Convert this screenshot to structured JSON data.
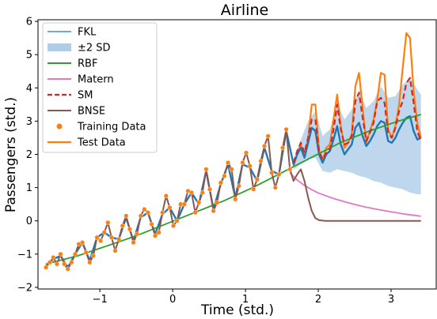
{
  "chart_data": {
    "type": "line",
    "title": "Airline",
    "xlabel": "Time (std.)",
    "ylabel": "Passengers (std.)",
    "xlim": [
      -1.85,
      3.62
    ],
    "ylim": [
      -2.05,
      6.05
    ],
    "xticks": [
      -1,
      0,
      1,
      2,
      3
    ],
    "yticks": [
      -2,
      -1,
      0,
      1,
      2,
      3,
      4,
      5,
      6
    ],
    "tick_labels_x": [
      "−1",
      "0",
      "1",
      "2",
      "3"
    ],
    "tick_labels_y": [
      "−2",
      "−1",
      "0",
      "1",
      "2",
      "3",
      "4",
      "5",
      "6"
    ],
    "grid": false,
    "legend_position": "top-left",
    "colors": {
      "fkl": "#1f77b4",
      "fkl_band": "#aecde8",
      "rbf": "#2ca02c",
      "matern": "#e377c2",
      "sm": "#d62728",
      "bnse": "#8c564b",
      "training": "#ff7f0e",
      "test": "#ff7f0e"
    },
    "legend": [
      "FKL",
      "±2 SD",
      "RBF",
      "Matern",
      "SM",
      "BNSE",
      "Training Data",
      "Test Data"
    ],
    "series": [
      {
        "name": "Training Data",
        "style": "scatter",
        "x": [
          -1.74,
          -1.69,
          -1.64,
          -1.59,
          -1.54,
          -1.49,
          -1.44,
          -1.39,
          -1.34,
          -1.29,
          -1.24,
          -1.19,
          -1.14,
          -1.09,
          -1.04,
          -0.99,
          -0.94,
          -0.89,
          -0.84,
          -0.79,
          -0.74,
          -0.69,
          -0.64,
          -0.59,
          -0.54,
          -0.49,
          -0.44,
          -0.39,
          -0.34,
          -0.29,
          -0.24,
          -0.19,
          -0.14,
          -0.09,
          -0.04,
          0.01,
          0.06,
          0.11,
          0.16,
          0.21,
          0.26,
          0.31,
          0.36,
          0.41,
          0.46,
          0.51,
          0.56,
          0.61,
          0.66,
          0.71,
          0.76,
          0.81,
          0.86,
          0.91,
          0.96,
          1.01,
          1.06,
          1.11,
          1.16,
          1.21,
          1.26,
          1.31,
          1.36,
          1.41,
          1.46,
          1.51,
          1.56,
          1.61
        ],
        "y": [
          -1.4,
          -1.25,
          -1.1,
          -1.3,
          -1.0,
          -1.3,
          -1.45,
          -1.25,
          -1.0,
          -0.7,
          -0.65,
          -0.95,
          -1.25,
          -1.05,
          -0.5,
          -0.6,
          -0.35,
          -0.05,
          -0.5,
          -0.9,
          -0.55,
          -0.15,
          0.15,
          -0.25,
          -0.65,
          -0.4,
          0.15,
          0.35,
          0.25,
          -0.1,
          -0.45,
          -0.35,
          0.25,
          0.75,
          0.4,
          -0.15,
          0.0,
          0.5,
          0.5,
          0.9,
          0.85,
          0.25,
          0.55,
          0.85,
          1.55,
          0.95,
          0.3,
          0.55,
          1.15,
          1.35,
          1.75,
          1.55,
          0.65,
          1.05,
          1.75,
          2.05,
          1.65,
          0.95,
          1.25,
          1.8,
          2.25,
          2.55,
          1.45,
          1.0,
          1.4,
          2.2,
          2.75,
          1.55
        ]
      },
      {
        "name": "Test Data",
        "style": "line",
        "x": [
          1.66,
          1.71,
          1.76,
          1.81,
          1.86,
          1.91,
          1.96,
          2.01,
          2.06,
          2.11,
          2.16,
          2.21,
          2.26,
          2.31,
          2.36,
          2.41,
          2.46,
          2.51,
          2.56,
          2.61,
          2.66,
          2.71,
          2.76,
          2.81,
          2.86,
          2.91,
          2.96,
          3.01,
          3.06,
          3.11,
          3.16,
          3.21,
          3.26,
          3.31,
          3.36,
          3.41
        ],
        "y": [
          1.65,
          2.0,
          2.3,
          1.95,
          2.5,
          3.5,
          3.5,
          2.15,
          1.8,
          2.2,
          2.3,
          3.05,
          3.8,
          2.85,
          2.2,
          2.35,
          2.6,
          4.05,
          4.45,
          3.4,
          2.35,
          2.7,
          3.05,
          3.65,
          4.45,
          4.4,
          2.75,
          2.5,
          2.85,
          3.5,
          4.6,
          5.65,
          5.5,
          3.9,
          2.95,
          2.5
        ]
      },
      {
        "name": "FKL",
        "style": "line",
        "x": [
          -1.74,
          -1.64,
          -1.54,
          -1.44,
          -1.34,
          -1.24,
          -1.14,
          -1.04,
          -0.94,
          -0.84,
          -0.74,
          -0.64,
          -0.54,
          -0.44,
          -0.34,
          -0.24,
          -0.14,
          -0.04,
          0.06,
          0.16,
          0.26,
          0.36,
          0.46,
          0.56,
          0.66,
          0.76,
          0.86,
          0.96,
          1.06,
          1.16,
          1.26,
          1.36,
          1.46,
          1.56,
          1.66,
          1.71,
          1.76,
          1.81,
          1.86,
          1.91,
          1.96,
          2.01,
          2.06,
          2.11,
          2.16,
          2.21,
          2.26,
          2.31,
          2.36,
          2.41,
          2.46,
          2.51,
          2.56,
          2.61,
          2.66,
          2.71,
          2.76,
          2.81,
          2.86,
          2.91,
          2.96,
          3.01,
          3.06,
          3.11,
          3.16,
          3.21,
          3.26,
          3.31,
          3.36,
          3.41
        ],
        "y": [
          -1.35,
          -1.15,
          -1.05,
          -1.4,
          -1.0,
          -0.65,
          -1.2,
          -0.5,
          -0.35,
          -0.5,
          -0.55,
          0.1,
          -0.6,
          0.1,
          0.25,
          -0.4,
          0.2,
          0.4,
          0.0,
          0.5,
          0.85,
          0.5,
          1.5,
          0.35,
          1.1,
          1.7,
          0.7,
          1.7,
          1.6,
          1.2,
          2.2,
          1.5,
          1.4,
          2.7,
          1.7,
          2.0,
          2.2,
          1.9,
          2.35,
          2.8,
          2.7,
          2.0,
          1.75,
          2.0,
          2.1,
          2.45,
          2.85,
          2.3,
          2.0,
          2.15,
          2.3,
          2.8,
          2.95,
          2.55,
          2.25,
          2.4,
          2.6,
          2.85,
          3.0,
          2.95,
          2.4,
          2.35,
          2.5,
          2.75,
          2.95,
          3.1,
          3.15,
          2.7,
          2.45,
          2.5
        ]
      },
      {
        "name": "±2 SD",
        "style": "band",
        "x": [
          1.66,
          1.76,
          1.86,
          1.96,
          2.06,
          2.16,
          2.26,
          2.36,
          2.46,
          2.56,
          2.66,
          2.76,
          2.86,
          2.96,
          3.06,
          3.16,
          3.26,
          3.36,
          3.41
        ],
        "lower": [
          1.55,
          1.7,
          1.85,
          1.9,
          1.5,
          1.45,
          1.55,
          1.5,
          1.45,
          1.35,
          1.3,
          1.2,
          1.15,
          1.05,
          1.0,
          0.95,
          0.85,
          0.8,
          0.8
        ],
        "upper": [
          1.85,
          2.45,
          3.0,
          3.3,
          2.55,
          2.75,
          3.55,
          3.05,
          3.35,
          3.95,
          3.4,
          3.6,
          4.05,
          3.7,
          3.75,
          4.1,
          4.3,
          3.95,
          3.8
        ]
      },
      {
        "name": "RBF",
        "style": "line",
        "x": [
          -1.74,
          -1.3,
          -0.9,
          -0.5,
          -0.1,
          0.3,
          0.7,
          1.1,
          1.5,
          1.9,
          2.3,
          2.7,
          3.1,
          3.41
        ],
        "y": [
          -1.3,
          -1.05,
          -0.75,
          -0.45,
          -0.1,
          0.25,
          0.6,
          1.0,
          1.45,
          1.9,
          2.35,
          2.7,
          3.0,
          3.2
        ]
      },
      {
        "name": "Matern",
        "style": "line",
        "x": [
          1.61,
          1.7,
          1.8,
          1.9,
          2.0,
          2.2,
          2.4,
          2.6,
          2.8,
          3.0,
          3.2,
          3.41
        ],
        "y": [
          1.45,
          1.25,
          1.08,
          0.95,
          0.84,
          0.68,
          0.55,
          0.44,
          0.35,
          0.27,
          0.2,
          0.14
        ]
      },
      {
        "name": "SM",
        "style": "dashed",
        "x": [
          1.66,
          1.71,
          1.76,
          1.81,
          1.86,
          1.91,
          1.96,
          2.01,
          2.06,
          2.11,
          2.16,
          2.21,
          2.26,
          2.31,
          2.36,
          2.41,
          2.46,
          2.51,
          2.56,
          2.61,
          2.66,
          2.71,
          2.76,
          2.81,
          2.86,
          2.91,
          2.96,
          3.01,
          3.06,
          3.11,
          3.16,
          3.21,
          3.26,
          3.31,
          3.36,
          3.41
        ],
        "y": [
          1.75,
          2.1,
          2.35,
          2.05,
          2.5,
          3.05,
          3.05,
          2.1,
          1.85,
          2.05,
          2.15,
          2.75,
          3.5,
          2.75,
          2.3,
          2.35,
          2.55,
          3.6,
          3.85,
          3.1,
          2.4,
          2.65,
          2.95,
          3.6,
          3.7,
          3.55,
          2.65,
          2.5,
          2.8,
          3.3,
          3.6,
          4.15,
          4.3,
          3.55,
          2.7,
          2.4
        ]
      },
      {
        "name": "BNSE",
        "style": "line",
        "x": [
          -1.74,
          -1.69,
          -1.64,
          -1.59,
          -1.54,
          -1.49,
          -1.44,
          -1.39,
          -1.34,
          -1.29,
          -1.24,
          -1.19,
          -1.14,
          -1.09,
          -1.04,
          -0.99,
          -0.94,
          -0.89,
          -0.84,
          -0.79,
          -0.74,
          -0.69,
          -0.64,
          -0.59,
          -0.54,
          -0.49,
          -0.44,
          -0.39,
          -0.34,
          -0.29,
          -0.24,
          -0.19,
          -0.14,
          -0.09,
          -0.04,
          0.01,
          0.06,
          0.11,
          0.16,
          0.21,
          0.26,
          0.31,
          0.36,
          0.41,
          0.46,
          0.51,
          0.56,
          0.61,
          0.66,
          0.71,
          0.76,
          0.81,
          0.86,
          0.91,
          0.96,
          1.01,
          1.06,
          1.11,
          1.16,
          1.21,
          1.26,
          1.31,
          1.36,
          1.41,
          1.46,
          1.51,
          1.56,
          1.61,
          1.66,
          1.71,
          1.76,
          1.81,
          1.86,
          1.91,
          1.96,
          2.01,
          2.1,
          2.3,
          2.6,
          3.0,
          3.41
        ],
        "y": [
          -1.4,
          -1.25,
          -1.1,
          -1.3,
          -1.0,
          -1.3,
          -1.45,
          -1.25,
          -1.0,
          -0.7,
          -0.65,
          -0.95,
          -1.25,
          -1.05,
          -0.5,
          -0.6,
          -0.35,
          -0.05,
          -0.5,
          -0.9,
          -0.55,
          -0.15,
          0.15,
          -0.25,
          -0.65,
          -0.4,
          0.15,
          0.35,
          0.25,
          -0.1,
          -0.45,
          -0.35,
          0.25,
          0.75,
          0.4,
          -0.15,
          0.0,
          0.5,
          0.5,
          0.9,
          0.85,
          0.25,
          0.55,
          0.85,
          1.55,
          0.95,
          0.3,
          0.55,
          1.15,
          1.35,
          1.75,
          1.55,
          0.65,
          1.05,
          1.75,
          2.05,
          1.65,
          0.95,
          1.25,
          1.8,
          2.25,
          2.55,
          1.45,
          1.0,
          1.4,
          2.2,
          2.75,
          1.55,
          1.2,
          1.4,
          1.55,
          1.2,
          0.7,
          0.3,
          0.08,
          0.02,
          0.0,
          0.0,
          0.0,
          0.0,
          0.0
        ]
      }
    ]
  }
}
